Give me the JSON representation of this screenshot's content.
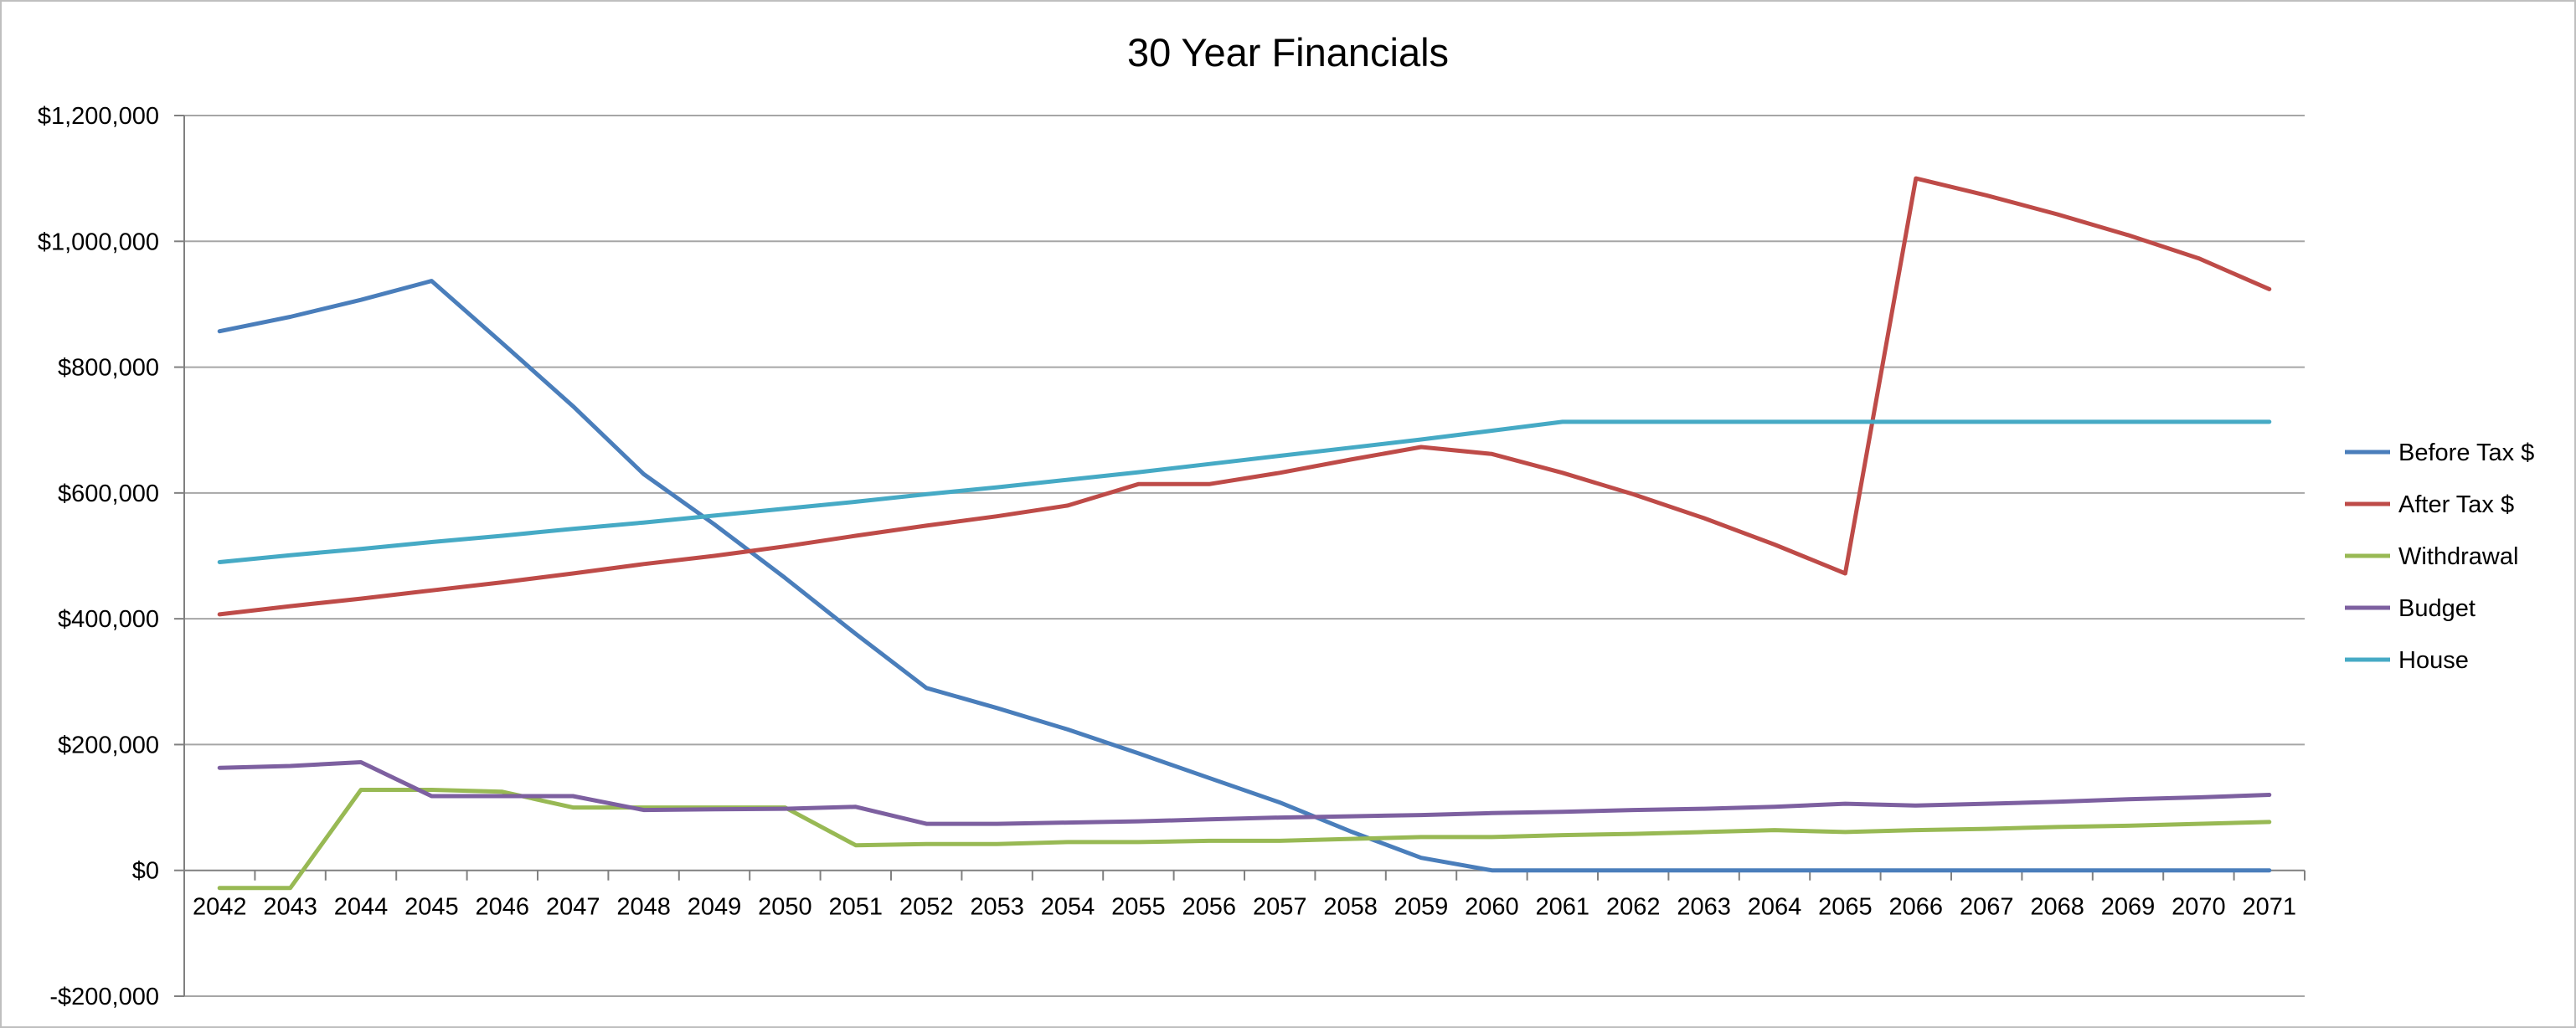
{
  "chart_data": {
    "type": "line",
    "title": "30 Year Financials",
    "xlabel": "",
    "ylabel": "",
    "categories": [
      "2042",
      "2043",
      "2044",
      "2045",
      "2046",
      "2047",
      "2048",
      "2049",
      "2050",
      "2051",
      "2052",
      "2053",
      "2054",
      "2055",
      "2056",
      "2057",
      "2058",
      "2059",
      "2060",
      "2061",
      "2062",
      "2063",
      "2064",
      "2065",
      "2066",
      "2067",
      "2068",
      "2069",
      "2070",
      "2071"
    ],
    "ylim": [
      -200000,
      1200000
    ],
    "yticks": [
      -200000,
      0,
      200000,
      400000,
      600000,
      800000,
      1000000,
      1200000
    ],
    "ytick_labels": [
      "-$200,000",
      "$0",
      "$200,000",
      "$400,000",
      "$600,000",
      "$800,000",
      "$1,000,000",
      "$1,200,000"
    ],
    "grid": true,
    "legend_position": "right",
    "series": [
      {
        "name": "Before Tax $",
        "color": "#4a7ebb",
        "values": [
          857000,
          880000,
          907000,
          937000,
          838000,
          738000,
          630000,
          550000,
          465000,
          376000,
          290000,
          258000,
          224000,
          186000,
          147000,
          108000,
          62000,
          20000,
          0,
          0,
          0,
          0,
          0,
          0,
          0,
          0,
          0,
          0,
          0,
          0
        ]
      },
      {
        "name": "After Tax $",
        "color": "#be4b48",
        "values": [
          407000,
          420000,
          432000,
          445000,
          458000,
          472000,
          487000,
          500000,
          515000,
          532000,
          548000,
          563000,
          580000,
          614000,
          614000,
          632000,
          653000,
          673000,
          662000,
          632000,
          598000,
          560000,
          518000,
          472000,
          1100000,
          1073000,
          1043000,
          1010000,
          973000,
          924000
        ]
      },
      {
        "name": "Withdrawal",
        "color": "#98b954",
        "values": [
          -28000,
          -28000,
          128000,
          128000,
          125000,
          100000,
          100000,
          100000,
          100000,
          40000,
          42000,
          42000,
          45000,
          45000,
          47000,
          47000,
          50000,
          53000,
          53000,
          56000,
          58000,
          61000,
          64000,
          61000,
          64000,
          66000,
          69000,
          71000,
          74000,
          77000
        ]
      },
      {
        "name": "Budget",
        "color": "#7d60a0",
        "values": [
          163000,
          166000,
          172000,
          118000,
          118000,
          118000,
          96000,
          97000,
          98000,
          101000,
          74000,
          74000,
          76000,
          78000,
          81000,
          84000,
          86000,
          88000,
          91000,
          93000,
          96000,
          98000,
          101000,
          106000,
          103000,
          106000,
          109000,
          113000,
          116000,
          120000
        ]
      },
      {
        "name": "House",
        "color": "#46aac5",
        "values": [
          490000,
          501000,
          511000,
          522000,
          532000,
          543000,
          553000,
          564000,
          575000,
          586000,
          598000,
          609000,
          621000,
          633000,
          646000,
          659000,
          672000,
          685000,
          699000,
          713000,
          713000,
          713000,
          713000,
          713000,
          713000,
          713000,
          713000,
          713000,
          713000,
          713000
        ]
      }
    ]
  },
  "colors": {
    "gridline": "#a6a6a6",
    "axis": "#808080",
    "border": "#bfbfbf"
  }
}
